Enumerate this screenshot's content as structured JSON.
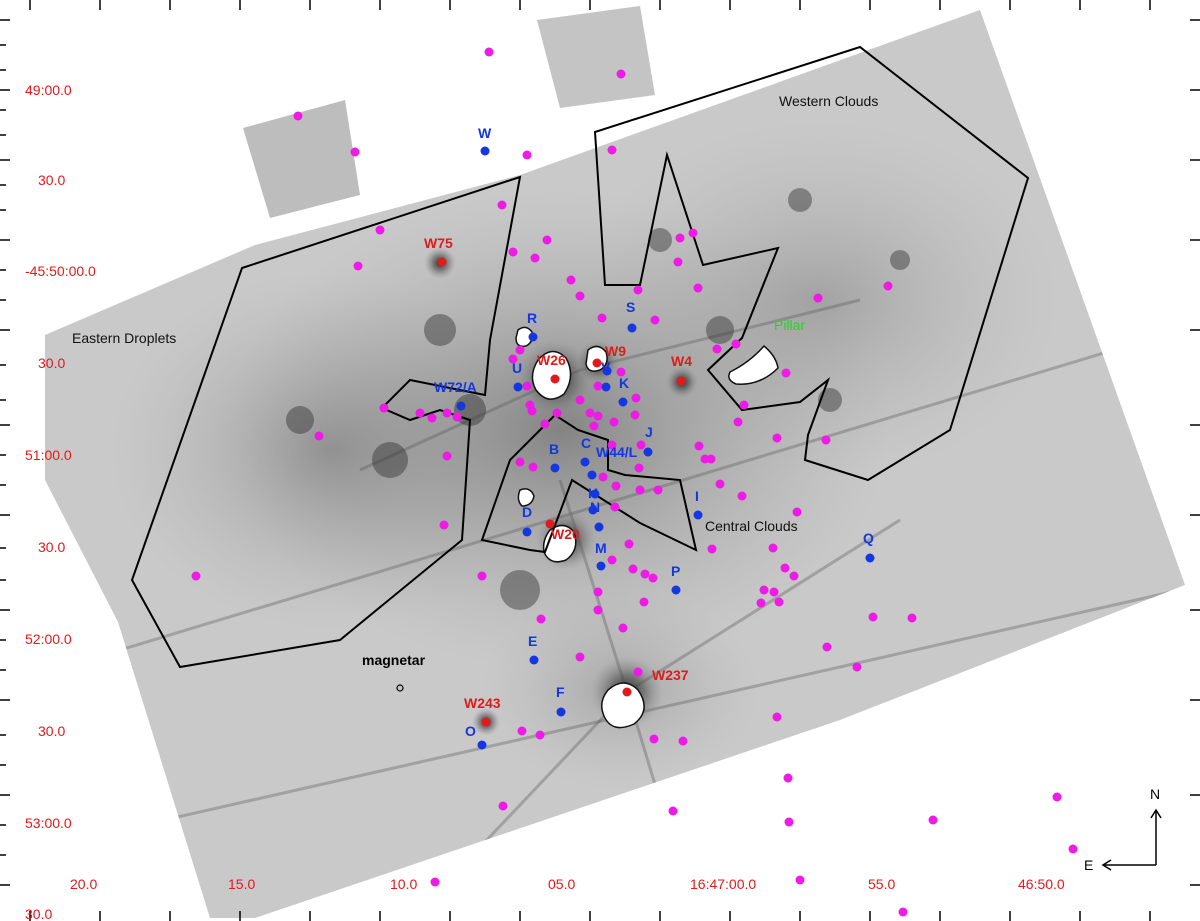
{
  "axes": {
    "dec_ticks": [
      "49:00.0",
      "30.0",
      "-45:50:00.0",
      "30.0",
      "51:00.0",
      "30.0",
      "52:00.0",
      "30.0",
      "53:00.0",
      "30.0"
    ],
    "ra_ticks": [
      "20.0",
      "15.0",
      "10.0",
      "05.0",
      "16:47:00.0",
      "55.0",
      "46:50.0"
    ]
  },
  "regions": {
    "western_clouds": "Western Clouds",
    "eastern_droplets": "Eastern Droplets",
    "central_clouds": "Central Clouds",
    "pillar": "Pillar",
    "magnetar": "magnetar"
  },
  "red_stars": [
    "W75",
    "W26",
    "W9",
    "W4",
    "W20",
    "W237",
    "W243"
  ],
  "blue_stars": [
    "W",
    "S",
    "R",
    "V",
    "U",
    "K",
    "W72/A",
    "J",
    "C",
    "B",
    "W44/L",
    "H",
    "I",
    "D",
    "N",
    "M",
    "Q",
    "P",
    "E",
    "F",
    "O"
  ],
  "compass": {
    "north": "N",
    "east": "E"
  },
  "colors": {
    "red_label": "#e01b1b",
    "blue_marker": "#1437e0",
    "magenta_marker": "#ee1ae6",
    "pillar_label": "#2bd12b",
    "outline": "#000000"
  }
}
